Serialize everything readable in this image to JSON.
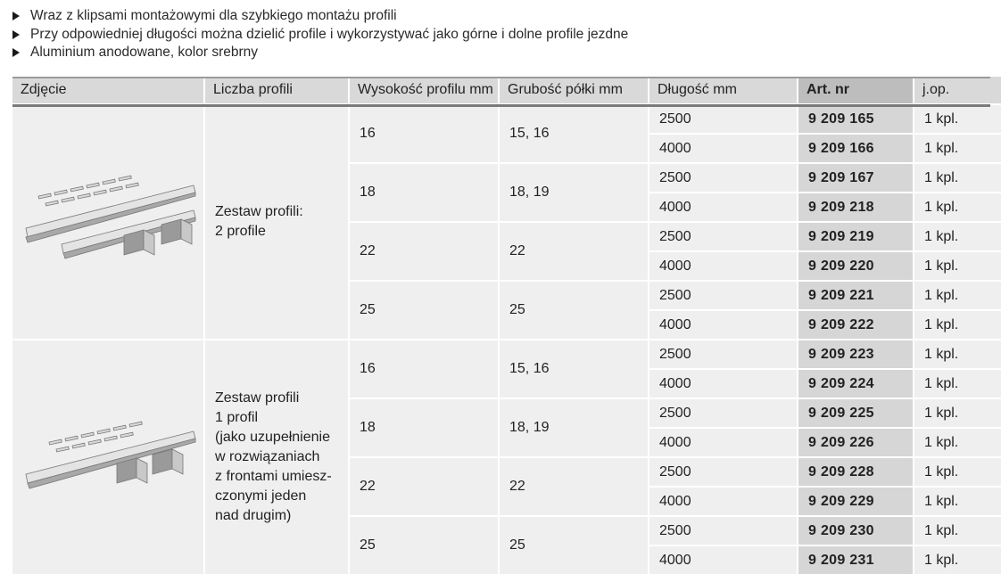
{
  "bullets": [
    "Wraz z klipsami montażowymi dla szybkiego montażu profili",
    "Przy odpowiedniej długości można dzielić profile i wykorzystywać jako górne i dolne profile jezdne",
    "Aluminium anodowane, kolor srebrny"
  ],
  "headers": {
    "photo": "Zdjęcie",
    "count": "Liczba profili",
    "height": "Wysokość profilu mm",
    "thickness": "Grubość półki mm",
    "length": "Długość mm",
    "art": "Art. nr",
    "unit": "j.op."
  },
  "groups": [
    {
      "description": "Zestaw profili:\n2 profile",
      "subgroups": [
        {
          "height": "16",
          "thickness": "15, 16",
          "rows": [
            {
              "length": "2500",
              "art": "9 209 165",
              "unit": "1 kpl."
            },
            {
              "length": "4000",
              "art": "9 209 166",
              "unit": "1 kpl."
            }
          ]
        },
        {
          "height": "18",
          "thickness": "18, 19",
          "rows": [
            {
              "length": "2500",
              "art": "9 209 167",
              "unit": "1 kpl."
            },
            {
              "length": "4000",
              "art": "9 209 218",
              "unit": "1 kpl."
            }
          ]
        },
        {
          "height": "22",
          "thickness": "22",
          "rows": [
            {
              "length": "2500",
              "art": "9 209 219",
              "unit": "1 kpl."
            },
            {
              "length": "4000",
              "art": "9 209 220",
              "unit": "1 kpl."
            }
          ]
        },
        {
          "height": "25",
          "thickness": "25",
          "rows": [
            {
              "length": "2500",
              "art": "9 209 221",
              "unit": "1 kpl."
            },
            {
              "length": "4000",
              "art": "9 209 222",
              "unit": "1 kpl."
            }
          ]
        }
      ]
    },
    {
      "description": "Zestaw profili\n1 profil\n(jako uzupełnienie\nw rozwiązaniach\nz frontami umiesz-\nczonymi jeden\nnad drugim)",
      "subgroups": [
        {
          "height": "16",
          "thickness": "15, 16",
          "rows": [
            {
              "length": "2500",
              "art": "9 209 223",
              "unit": "1 kpl."
            },
            {
              "length": "4000",
              "art": "9 209 224",
              "unit": "1 kpl."
            }
          ]
        },
        {
          "height": "18",
          "thickness": "18, 19",
          "rows": [
            {
              "length": "2500",
              "art": "9 209 225",
              "unit": "1 kpl."
            },
            {
              "length": "4000",
              "art": "9 209 226",
              "unit": "1 kpl."
            }
          ]
        },
        {
          "height": "22",
          "thickness": "22",
          "rows": [
            {
              "length": "2500",
              "art": "9 209 228",
              "unit": "1 kpl."
            },
            {
              "length": "4000",
              "art": "9 209 229",
              "unit": "1 kpl."
            }
          ]
        },
        {
          "height": "25",
          "thickness": "25",
          "rows": [
            {
              "length": "2500",
              "art": "9 209 230",
              "unit": "1 kpl."
            },
            {
              "length": "4000",
              "art": "9 209 231",
              "unit": "1 kpl."
            }
          ]
        }
      ]
    }
  ]
}
